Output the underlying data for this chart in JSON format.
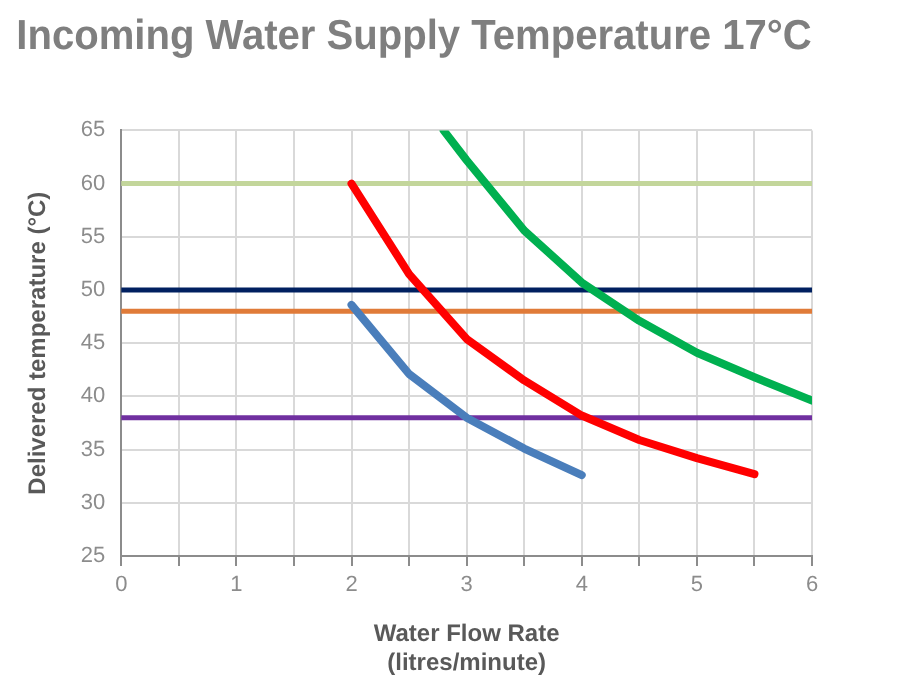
{
  "chart_data": {
    "type": "line",
    "title": "Incoming Water Supply Temperature 17°C",
    "xlabel": "Water Flow Rate\n(litres/minute)",
    "ylabel": "Delivered temperature (°C)",
    "xlim": [
      0,
      6
    ],
    "xticks": [
      0,
      {
        "value": 0.5,
        "label": null
      },
      1,
      {
        "value": 1.5,
        "label": null
      },
      2,
      {
        "value": 2.5,
        "label": null
      },
      3,
      {
        "value": 3.5,
        "label": null
      },
      4,
      {
        "value": 4.5,
        "label": null
      },
      5,
      {
        "value": 5.5,
        "label": null
      },
      6
    ],
    "ylim": [
      25,
      65
    ],
    "yticks": [
      25,
      30,
      35,
      40,
      45,
      50,
      55,
      60,
      65
    ],
    "grid": true,
    "legend": false,
    "marker": "none",
    "line_style": "solid",
    "series": [
      {
        "color": "#4a7ebb",
        "x": [
          2,
          2.5,
          3,
          3.5,
          4
        ],
        "values": [
          48.6,
          42.1,
          38,
          35.1,
          32.6
        ]
      },
      {
        "color": "#ff0000",
        "x": [
          2,
          2.5,
          3,
          3.5,
          4,
          4.5,
          5,
          5.5
        ],
        "values": [
          60,
          51.5,
          45.4,
          41.5,
          38.2,
          35.9,
          34.2,
          32.7
        ]
      },
      {
        "color": "#00b050",
        "x": [
          2.8,
          3,
          3.5,
          4,
          4.5,
          5,
          5.5,
          6
        ],
        "values": [
          65,
          62.2,
          55.6,
          50.7,
          47.1,
          44.1,
          41.8,
          39.6
        ]
      }
    ],
    "ref_lines": [
      {
        "axis": "y",
        "value": 60,
        "label": null,
        "color": "#c3d69b"
      },
      {
        "axis": "y",
        "value": 50,
        "label": null,
        "color": "#002060"
      },
      {
        "axis": "y",
        "value": 48,
        "label": null,
        "color": "#e07b39"
      },
      {
        "axis": "y",
        "value": 38,
        "label": null,
        "color": "#7030a0"
      }
    ]
  }
}
